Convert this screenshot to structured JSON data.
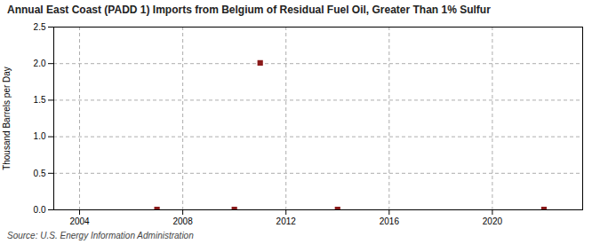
{
  "chart_data": {
    "type": "scatter",
    "title": "Annual East Coast (PADD 1) Imports from Belgium of Residual Fuel Oil, Greater Than 1% Sulfur",
    "ylabel": "Thousand Barrels per Day",
    "source": "Source: U.S. Energy Information Administration",
    "x": [
      2007,
      2010,
      2011,
      2014,
      2022
    ],
    "values": [
      0.005,
      0.005,
      2.01,
      0.005,
      0.005
    ],
    "color": "#8b1a1a",
    "marker": "square",
    "xlim": [
      2003.0,
      2023.5
    ],
    "xticks": [
      2004,
      2008,
      2012,
      2016,
      2020
    ],
    "ylim": [
      0.0,
      2.5
    ],
    "yticks": [
      {
        "value": 0.0,
        "label": "0.0"
      },
      0.5,
      {
        "value": 1.0,
        "label": "1.0"
      },
      1.5,
      {
        "value": 2.0,
        "label": "2.0"
      },
      2.5
    ],
    "grid": true
  }
}
